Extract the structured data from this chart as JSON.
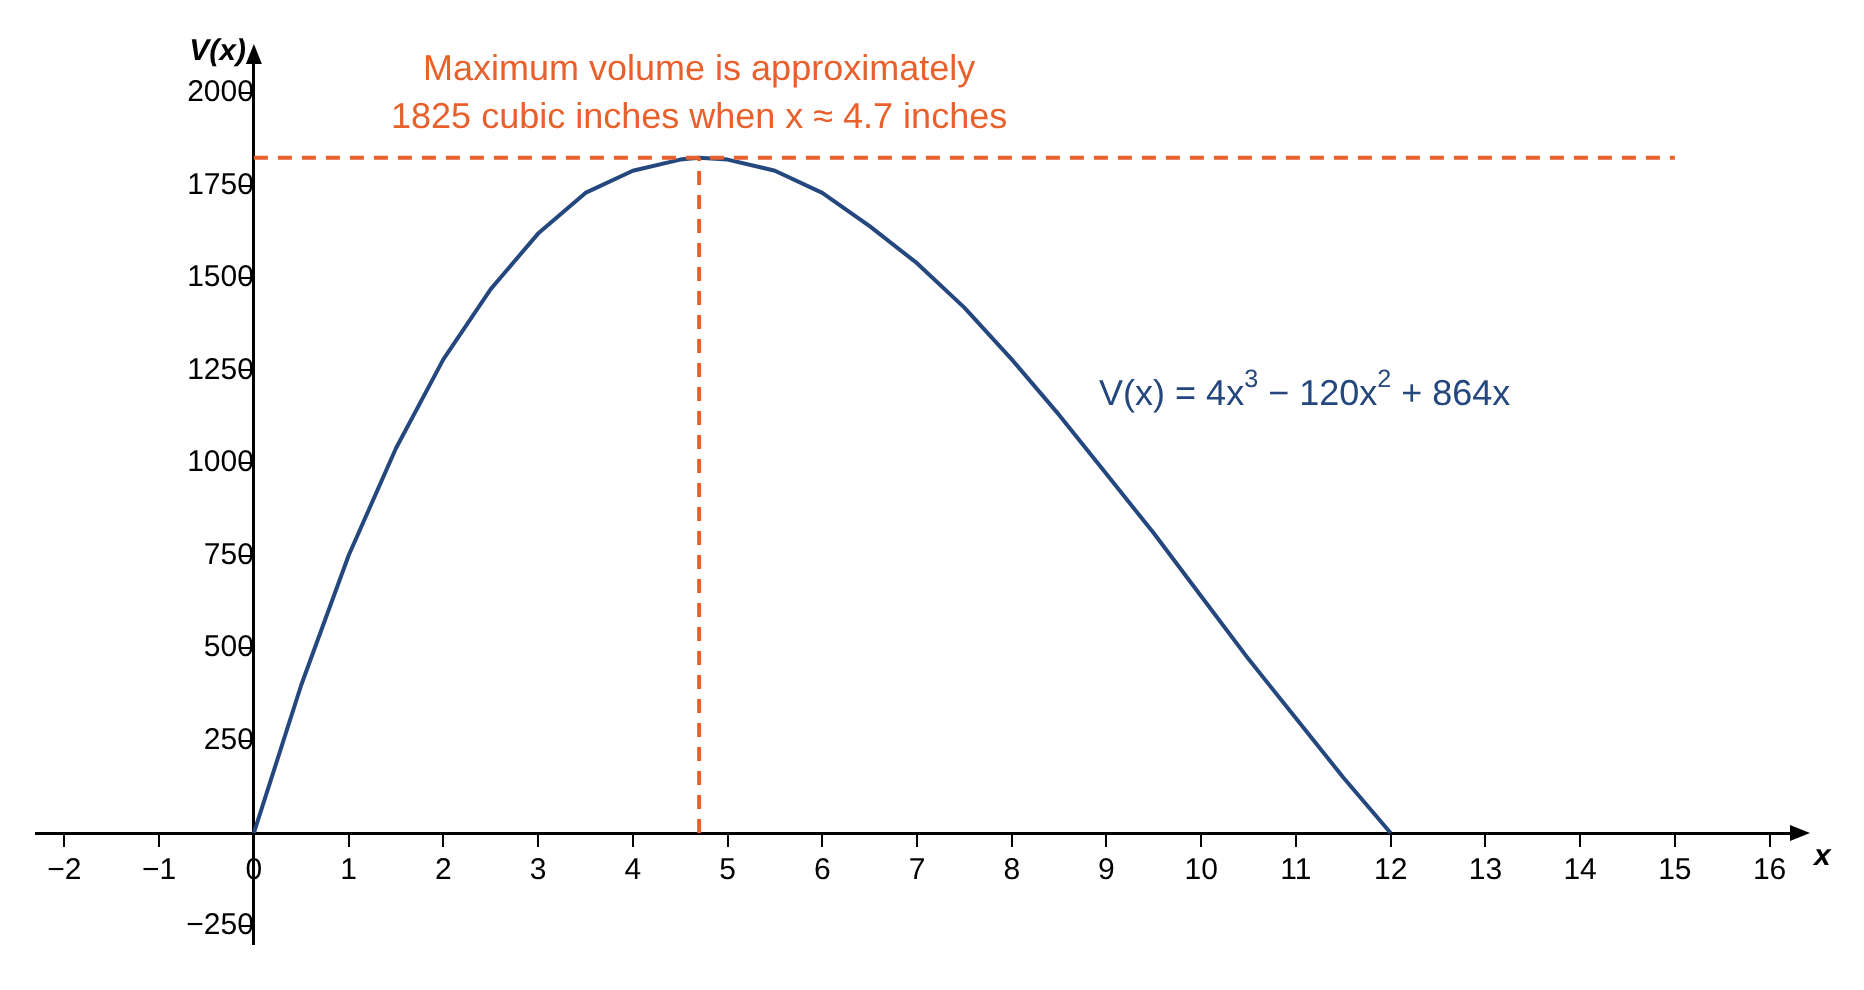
{
  "chart_data": {
    "type": "line",
    "xlabel": "x",
    "ylabel": "V(x)",
    "x": [
      0,
      0.5,
      1,
      1.5,
      2,
      2.5,
      3,
      3.5,
      4,
      4.5,
      4.7,
      5,
      5.5,
      6,
      6.5,
      7,
      7.5,
      8,
      8.5,
      9,
      9.5,
      10,
      10.5,
      11,
      11.5,
      12
    ],
    "series": [
      {
        "name": "V(x) = 4x$^{3}$ − 120x$^{2}$ + 864x",
        "color": "#24477d",
        "values": [
          0,
          400,
          750,
          1040,
          1280,
          1470,
          1620,
          1730,
          1790,
          1820,
          1825,
          1820,
          1790,
          1730,
          1640,
          1540,
          1420,
          1280,
          1130,
          970,
          810,
          640,
          470,
          310,
          150,
          0
        ]
      }
    ],
    "xlim": [
      -2.3,
      16.3
    ],
    "xticks": [
      -2,
      -1,
      0,
      1,
      2,
      3,
      4,
      5,
      6,
      7,
      8,
      9,
      10,
      11,
      12,
      13,
      14,
      15,
      16
    ],
    "ylim": [
      -300,
      2100
    ],
    "yticks": [
      -250,
      {
        "value": 0,
        "label": null
      },
      250,
      500,
      750,
      1000,
      1250,
      1500,
      1750,
      2000
    ],
    "ref_lines": [
      {
        "axis": "y",
        "value": 1825,
        "color": "#e8602c",
        "line_style": "dashed"
      },
      {
        "axis": "x",
        "value": 4.7,
        "color": "#e8602c",
        "line_style": "dashed"
      }
    ],
    "annotations": [
      {
        "text": "Maximum volume is approximately\n1825 cubic inches when x ≈ 4.7 inches",
        "x": 4.7,
        "y": 1825
      }
    ],
    "grid": false,
    "legend": false,
    "marker": "none",
    "line_style": "solid"
  }
}
